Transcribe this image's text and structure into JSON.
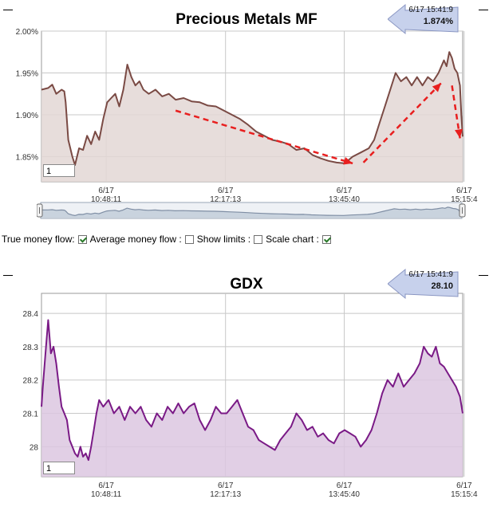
{
  "colors": {
    "mf_line": "#7a4a44",
    "mf_fill": "#e3d7d5",
    "gdx_line": "#7a1a86",
    "gdx_fill": "#dcc7e0",
    "grid": "#c8c8c8",
    "arrow": "#e81f1f",
    "navigator_line": "#7f8ea4",
    "navigator_fill": "#c9d3de",
    "pointer_fill": "#c7d1ec"
  },
  "top_panel": {
    "title": "Precious Metals MF",
    "pointer": {
      "time": "6/17 15:41:9",
      "value": "1.874%"
    },
    "input_value": "1"
  },
  "bottom_panel": {
    "title": "GDX",
    "pointer": {
      "time": "6/17 15:41:9",
      "value": "28.10"
    },
    "input_value": "1"
  },
  "controls": {
    "true_money_flow_label": "True money flow:",
    "true_money_flow_checked": true,
    "average_money_flow_label": "Average money flow :",
    "average_money_flow_checked": false,
    "show_limits_label": "Show limits :",
    "show_limits_checked": false,
    "scale_chart_label": "Scale chart :",
    "scale_chart_checked": true
  },
  "chart_data": [
    {
      "type": "area",
      "title": "Precious Metals MF",
      "ylim": [
        1.82,
        2.0
      ],
      "yticks": [
        {
          "value": 2.0,
          "label": "2.00%"
        },
        {
          "value": 1.95,
          "label": "1.95%"
        },
        {
          "value": 1.9,
          "label": "1.90%"
        },
        {
          "value": 1.85,
          "label": "1.85%"
        }
      ],
      "xticks": [
        {
          "t": 48.2,
          "date": "6/17",
          "time": "10:48:11"
        },
        {
          "t": 137.2,
          "date": "6/17",
          "time": "12:17:13"
        },
        {
          "t": 225.7,
          "date": "6/17",
          "time": "13:45:40"
        },
        {
          "t": 315.1,
          "date": "6/17",
          "time": "15:15:4"
        }
      ],
      "x_unit": "minutes after 10:00",
      "grid": true,
      "series": [
        {
          "points": [
            [
              0,
              1.93
            ],
            [
              5,
              1.932
            ],
            [
              8,
              1.936
            ],
            [
              11,
              1.925
            ],
            [
              15,
              1.93
            ],
            [
              17,
              1.928
            ],
            [
              18,
              1.915
            ],
            [
              20,
              1.87
            ],
            [
              23,
              1.85
            ],
            [
              25,
              1.84
            ],
            [
              28,
              1.86
            ],
            [
              31,
              1.858
            ],
            [
              34,
              1.875
            ],
            [
              37,
              1.865
            ],
            [
              40,
              1.88
            ],
            [
              43,
              1.87
            ],
            [
              46,
              1.895
            ],
            [
              49,
              1.915
            ],
            [
              52,
              1.92
            ],
            [
              55,
              1.925
            ],
            [
              58,
              1.91
            ],
            [
              61,
              1.93
            ],
            [
              64,
              1.96
            ],
            [
              67,
              1.945
            ],
            [
              70,
              1.935
            ],
            [
              73,
              1.94
            ],
            [
              76,
              1.93
            ],
            [
              80,
              1.925
            ],
            [
              85,
              1.93
            ],
            [
              90,
              1.922
            ],
            [
              95,
              1.925
            ],
            [
              100,
              1.918
            ],
            [
              106,
              1.92
            ],
            [
              112,
              1.916
            ],
            [
              118,
              1.915
            ],
            [
              124,
              1.911
            ],
            [
              130,
              1.91
            ],
            [
              136,
              1.905
            ],
            [
              142,
              1.9
            ],
            [
              148,
              1.895
            ],
            [
              154,
              1.888
            ],
            [
              160,
              1.88
            ],
            [
              166,
              1.875
            ],
            [
              172,
              1.87
            ],
            [
              178,
              1.868
            ],
            [
              184,
              1.865
            ],
            [
              190,
              1.858
            ],
            [
              196,
              1.86
            ],
            [
              202,
              1.852
            ],
            [
              208,
              1.848
            ],
            [
              214,
              1.845
            ],
            [
              220,
              1.843
            ],
            [
              226,
              1.842
            ],
            [
              232,
              1.85
            ],
            [
              238,
              1.855
            ],
            [
              244,
              1.86
            ],
            [
              248,
              1.87
            ],
            [
              252,
              1.89
            ],
            [
              256,
              1.91
            ],
            [
              260,
              1.93
            ],
            [
              264,
              1.95
            ],
            [
              268,
              1.94
            ],
            [
              272,
              1.945
            ],
            [
              276,
              1.935
            ],
            [
              280,
              1.945
            ],
            [
              284,
              1.935
            ],
            [
              288,
              1.945
            ],
            [
              292,
              1.94
            ],
            [
              296,
              1.95
            ],
            [
              300,
              1.965
            ],
            [
              302,
              1.958
            ],
            [
              304,
              1.975
            ],
            [
              306,
              1.968
            ],
            [
              308,
              1.955
            ],
            [
              310,
              1.95
            ],
            [
              312,
              1.935
            ],
            [
              313,
              1.9
            ],
            [
              314,
              1.874
            ]
          ]
        }
      ],
      "annotations": [
        {
          "type": "arrow",
          "from": [
            100,
            1.905
          ],
          "to": [
            232,
            1.842
          ]
        },
        {
          "type": "arrow",
          "from": [
            240,
            1.843
          ],
          "to": [
            298,
            1.938
          ]
        },
        {
          "type": "arrow",
          "from": [
            306,
            1.935
          ],
          "to": [
            312,
            1.872
          ]
        }
      ]
    },
    {
      "type": "area",
      "title": "GDX",
      "ylim": [
        27.91,
        28.46
      ],
      "yticks": [
        {
          "value": 28.4,
          "label": "28.4"
        },
        {
          "value": 28.3,
          "label": "28.3"
        },
        {
          "value": 28.2,
          "label": "28.2"
        },
        {
          "value": 28.1,
          "label": "28.1"
        },
        {
          "value": 28.0,
          "label": "28"
        }
      ],
      "xticks": [
        {
          "t": 48.2,
          "date": "6/17",
          "time": "10:48:11"
        },
        {
          "t": 137.2,
          "date": "6/17",
          "time": "12:17:13"
        },
        {
          "t": 225.7,
          "date": "6/17",
          "time": "13:45:40"
        },
        {
          "t": 315.1,
          "date": "6/17",
          "time": "15:15:4"
        }
      ],
      "x_unit": "minutes after 10:00",
      "grid": true,
      "series": [
        {
          "points": [
            [
              0,
              28.12
            ],
            [
              1,
              28.18
            ],
            [
              3,
              28.28
            ],
            [
              5,
              28.38
            ],
            [
              7,
              28.28
            ],
            [
              9,
              28.3
            ],
            [
              11,
              28.25
            ],
            [
              13,
              28.18
            ],
            [
              15,
              28.12
            ],
            [
              17,
              28.1
            ],
            [
              19,
              28.08
            ],
            [
              21,
              28.02
            ],
            [
              23,
              28.0
            ],
            [
              25,
              27.98
            ],
            [
              27,
              27.97
            ],
            [
              29,
              28.0
            ],
            [
              31,
              27.97
            ],
            [
              33,
              27.98
            ],
            [
              35,
              27.96
            ],
            [
              37,
              28.0
            ],
            [
              39,
              28.05
            ],
            [
              41,
              28.1
            ],
            [
              43,
              28.14
            ],
            [
              46,
              28.12
            ],
            [
              50,
              28.14
            ],
            [
              54,
              28.1
            ],
            [
              58,
              28.12
            ],
            [
              62,
              28.08
            ],
            [
              66,
              28.12
            ],
            [
              70,
              28.1
            ],
            [
              74,
              28.12
            ],
            [
              78,
              28.08
            ],
            [
              82,
              28.06
            ],
            [
              86,
              28.1
            ],
            [
              90,
              28.08
            ],
            [
              94,
              28.12
            ],
            [
              98,
              28.1
            ],
            [
              102,
              28.13
            ],
            [
              106,
              28.1
            ],
            [
              110,
              28.12
            ],
            [
              114,
              28.13
            ],
            [
              118,
              28.08
            ],
            [
              122,
              28.05
            ],
            [
              126,
              28.08
            ],
            [
              130,
              28.12
            ],
            [
              134,
              28.1
            ],
            [
              138,
              28.1
            ],
            [
              142,
              28.12
            ],
            [
              146,
              28.14
            ],
            [
              150,
              28.1
            ],
            [
              154,
              28.06
            ],
            [
              158,
              28.05
            ],
            [
              162,
              28.02
            ],
            [
              166,
              28.01
            ],
            [
              170,
              28.0
            ],
            [
              174,
              27.99
            ],
            [
              178,
              28.02
            ],
            [
              182,
              28.04
            ],
            [
              186,
              28.06
            ],
            [
              190,
              28.1
            ],
            [
              194,
              28.08
            ],
            [
              198,
              28.05
            ],
            [
              202,
              28.06
            ],
            [
              206,
              28.03
            ],
            [
              210,
              28.04
            ],
            [
              214,
              28.02
            ],
            [
              218,
              28.01
            ],
            [
              222,
              28.04
            ],
            [
              226,
              28.05
            ],
            [
              230,
              28.04
            ],
            [
              234,
              28.03
            ],
            [
              238,
              28.0
            ],
            [
              242,
              28.02
            ],
            [
              246,
              28.05
            ],
            [
              250,
              28.1
            ],
            [
              254,
              28.16
            ],
            [
              258,
              28.2
            ],
            [
              262,
              28.18
            ],
            [
              266,
              28.22
            ],
            [
              270,
              28.18
            ],
            [
              274,
              28.2
            ],
            [
              278,
              28.22
            ],
            [
              282,
              28.25
            ],
            [
              285,
              28.3
            ],
            [
              288,
              28.28
            ],
            [
              291,
              28.27
            ],
            [
              294,
              28.3
            ],
            [
              297,
              28.25
            ],
            [
              300,
              28.24
            ],
            [
              303,
              28.22
            ],
            [
              306,
              28.2
            ],
            [
              309,
              28.18
            ],
            [
              312,
              28.15
            ],
            [
              314,
              28.1
            ]
          ]
        }
      ]
    }
  ]
}
